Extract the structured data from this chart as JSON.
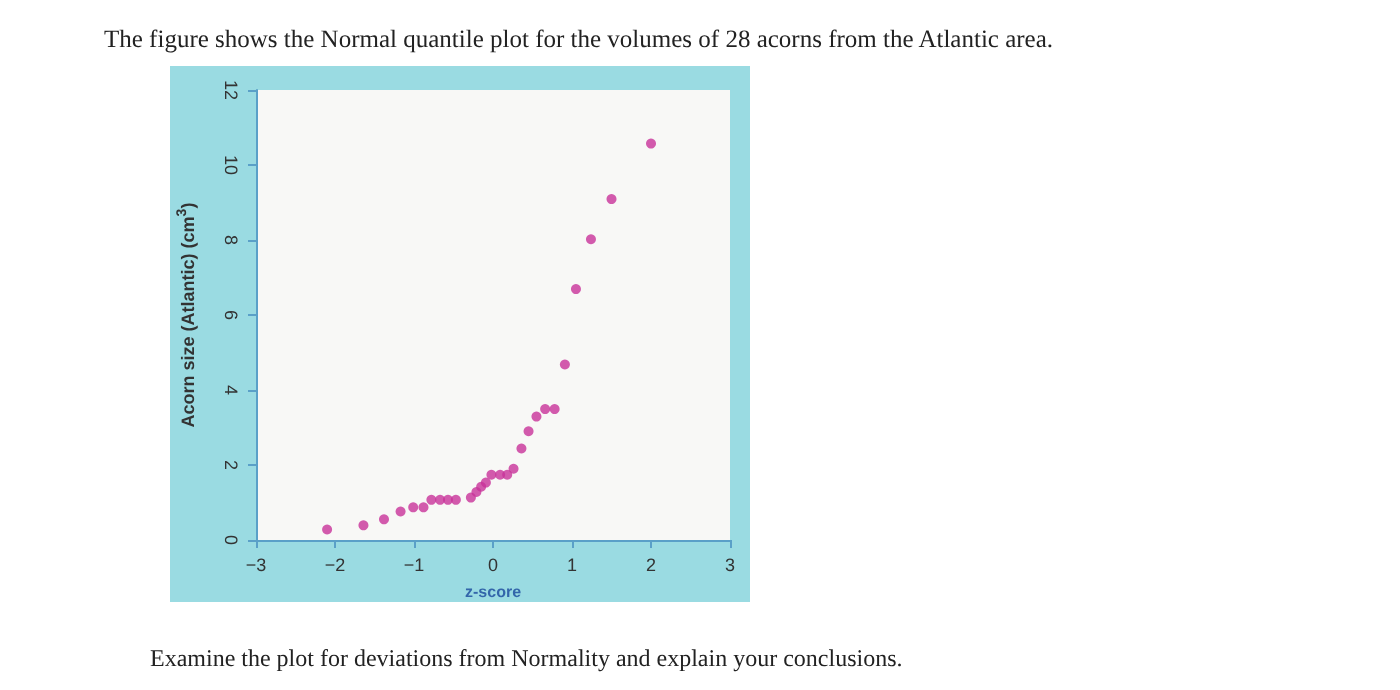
{
  "chart_data": {
    "type": "scatter",
    "title": "The figure shows the Normal quantile plot for the volumes of 28 acorns from the Atlantic area.",
    "xlabel": "z-score",
    "ylabel": "Acorn size (Atlantic) (cm$^{3}$)",
    "annotations": [
      "Examine the plot for deviations from Normality and explain your conclusions."
    ],
    "x": [
      -2.1,
      -1.64,
      -1.38,
      -1.17,
      -1.01,
      -0.88,
      -0.78,
      -0.67,
      -0.57,
      -0.47,
      -0.28,
      -0.21,
      -0.15,
      -0.09,
      -0.02,
      0.09,
      0.18,
      0.26,
      0.36,
      0.45,
      0.55,
      0.66,
      0.78,
      0.91,
      1.05,
      1.24,
      1.5,
      2.0
    ],
    "series": [
      {
        "color": "#c8329a",
        "values": [
          0.28,
          0.39,
          0.55,
          0.76,
          0.87,
          0.87,
          1.07,
          1.07,
          1.07,
          1.07,
          1.13,
          1.28,
          1.42,
          1.53,
          1.74,
          1.74,
          1.74,
          1.9,
          2.44,
          2.9,
          3.29,
          3.49,
          3.49,
          4.68,
          6.69,
          8.02,
          9.09,
          10.57
        ]
      }
    ],
    "xlim": [
      -3,
      3
    ],
    "xticks": [
      -3,
      -2,
      -1,
      0,
      1,
      2,
      3
    ],
    "ylim": [
      0,
      12
    ],
    "yticks": [
      0,
      2,
      4,
      6,
      8,
      10,
      12
    ],
    "grid": false,
    "marker": "circle"
  }
}
